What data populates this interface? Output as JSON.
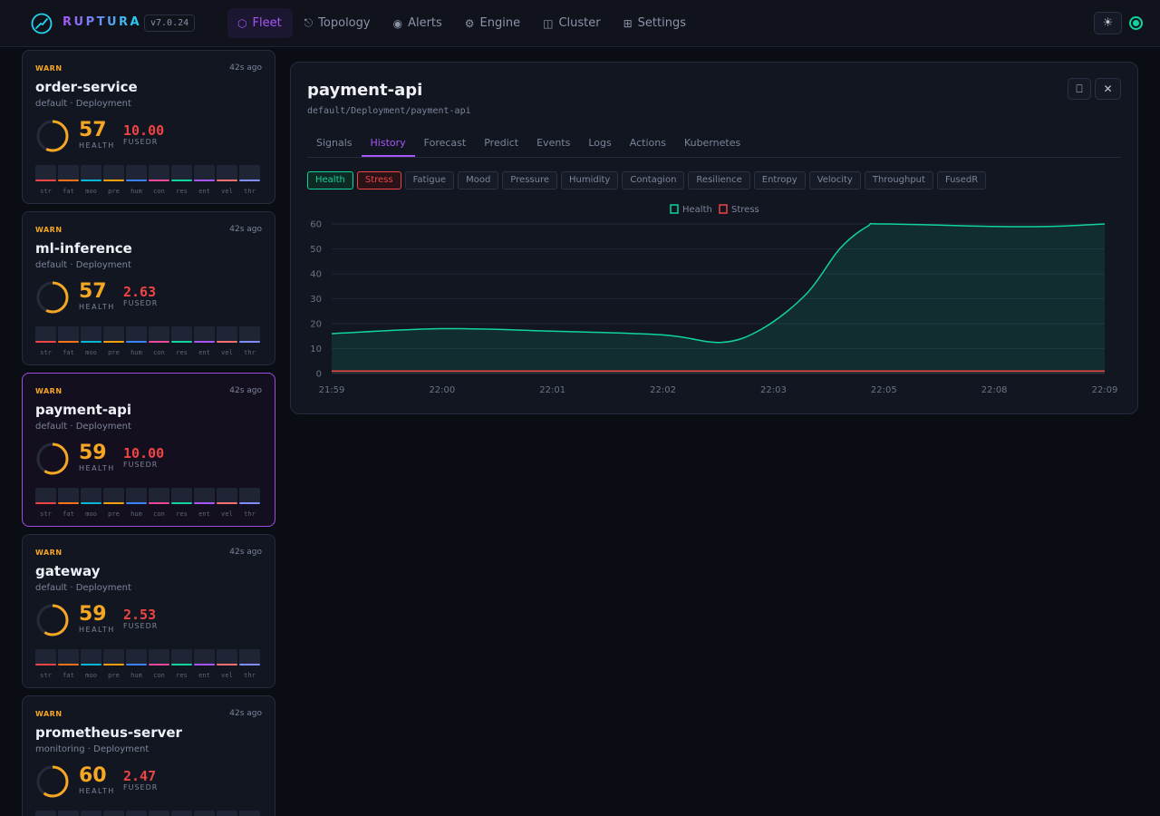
{
  "app": {
    "brand": "RUPTURA",
    "version": "v7.0.24"
  },
  "nav": [
    {
      "label": "Fleet",
      "icon": "⬡",
      "icon_name": "hexagon-icon",
      "active": true
    },
    {
      "label": "Topology",
      "icon": "⎋",
      "icon_name": "topology-icon"
    },
    {
      "label": "Alerts",
      "icon": "◉",
      "icon_name": "alert-icon"
    },
    {
      "label": "Engine",
      "icon": "⚙",
      "icon_name": "gear-icon"
    },
    {
      "label": "Cluster",
      "icon": "◫",
      "icon_name": "cluster-icon"
    },
    {
      "label": "Settings",
      "icon": "⊞",
      "icon_name": "settings-icon"
    }
  ],
  "header": {
    "theme_icon": "☀"
  },
  "bar_labels": [
    "str",
    "fat",
    "moo",
    "pre",
    "hum",
    "con",
    "res",
    "ent",
    "vel",
    "thr"
  ],
  "bar_colors": [
    "#ef4444",
    "#f97316",
    "#06b6d4",
    "#f59e0b",
    "#3b82f6",
    "#ec4899",
    "#10d39e",
    "#a855f7",
    "#f87171",
    "#818cf8"
  ],
  "services": [
    {
      "status": "WARN",
      "time": "42s ago",
      "name": "order-service",
      "namespace": "default · Deployment",
      "health": "57",
      "health_label": "HEALTH",
      "health_value": 57,
      "fused": "10.00",
      "fused_label": "FUSEDR"
    },
    {
      "status": "WARN",
      "time": "42s ago",
      "name": "ml-inference",
      "namespace": "default · Deployment",
      "health": "57",
      "health_label": "HEALTH",
      "health_value": 57,
      "fused": "2.63",
      "fused_label": "FUSEDR"
    },
    {
      "status": "WARN",
      "time": "42s ago",
      "name": "payment-api",
      "namespace": "default · Deployment",
      "health": "59",
      "health_label": "HEALTH",
      "health_value": 59,
      "fused": "10.00",
      "fused_label": "FUSEDR",
      "selected": true
    },
    {
      "status": "WARN",
      "time": "42s ago",
      "name": "gateway",
      "namespace": "default · Deployment",
      "health": "59",
      "health_label": "HEALTH",
      "health_value": 59,
      "fused": "2.53",
      "fused_label": "FUSEDR"
    },
    {
      "status": "WARN",
      "time": "42s ago",
      "name": "prometheus-server",
      "namespace": "monitoring · Deployment",
      "health": "60",
      "health_label": "HEALTH",
      "health_value": 60,
      "fused": "2.47",
      "fused_label": "FUSEDR"
    }
  ],
  "detail": {
    "title": "payment-api",
    "path": "default/Deployment/payment-api",
    "buttons": [
      {
        "icon": "⎕",
        "name": "expand-icon"
      },
      {
        "icon": "✕",
        "name": "close-icon"
      }
    ],
    "tabs": [
      "Signals",
      "History",
      "Forecast",
      "Predict",
      "Events",
      "Logs",
      "Actions",
      "Kubernetes"
    ],
    "active_tab": "History",
    "chips": [
      "Health",
      "Stress",
      "Fatigue",
      "Mood",
      "Pressure",
      "Humidity",
      "Contagion",
      "Resilience",
      "Entropy",
      "Velocity",
      "Throughput",
      "FusedR"
    ],
    "active_chips": [
      "Health",
      "Stress"
    ]
  },
  "chart_data": {
    "type": "area",
    "x": [
      "21:59",
      "22:00",
      "22:01",
      "22:02",
      "22:03",
      "22:05",
      "22:08",
      "22:09"
    ],
    "ylim": [
      0,
      60
    ],
    "yticks": [
      0,
      10,
      20,
      30,
      40,
      50,
      60
    ],
    "grid": true,
    "legend_position": "top-center",
    "series": [
      {
        "name": "Health",
        "color": "#10d39e",
        "points": [
          [
            0,
            16
          ],
          [
            1,
            18
          ],
          [
            2,
            17
          ],
          [
            3,
            15.5
          ],
          [
            3.53,
            12.5
          ],
          [
            3.9,
            18
          ],
          [
            4.3,
            32
          ],
          [
            4.6,
            50
          ],
          [
            4.85,
            59
          ],
          [
            5,
            60
          ],
          [
            6,
            59
          ],
          [
            6.5,
            59
          ],
          [
            7,
            60
          ]
        ]
      },
      {
        "name": "Stress",
        "color": "#ef4444",
        "points": [
          [
            0,
            1
          ],
          [
            1,
            1
          ],
          [
            2,
            1
          ],
          [
            3,
            1
          ],
          [
            4,
            1
          ],
          [
            5,
            1
          ],
          [
            6,
            1
          ],
          [
            7,
            1
          ]
        ]
      }
    ]
  }
}
